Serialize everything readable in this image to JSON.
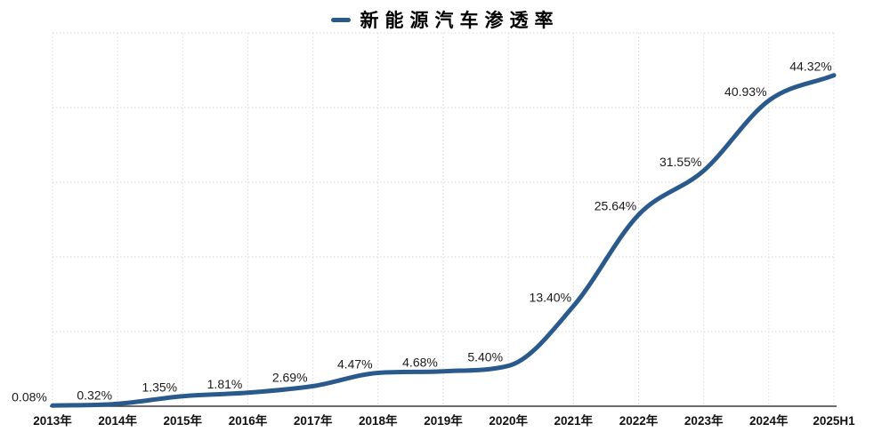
{
  "chart_data": {
    "type": "line",
    "series_name": "新能源汽车渗透率",
    "categories": [
      "2013年",
      "2014年",
      "2015年",
      "2016年",
      "2017年",
      "2018年",
      "2019年",
      "2020年",
      "2021年",
      "2022年",
      "2023年",
      "2024年",
      "2025H1"
    ],
    "values": [
      0.08,
      0.32,
      1.35,
      1.81,
      2.69,
      4.47,
      4.68,
      5.4,
      13.4,
      25.64,
      31.55,
      40.93,
      44.32
    ],
    "point_labels": [
      "0.08%",
      "0.32%",
      "1.35%",
      "1.81%",
      "2.69%",
      "4.47%",
      "4.68%",
      "5.40%",
      "13.40%",
      "25.64%",
      "31.55%",
      "40.93%",
      "44.32%"
    ],
    "xlabel": "",
    "ylabel": "",
    "ylim": [
      0,
      50
    ],
    "y_grid_step": 10,
    "grid": "dotted",
    "legend_position": "top-center",
    "smooth": true,
    "colors": {
      "line": "#2A5A8C",
      "grid": "#d9d9d9",
      "axis": "#3a3a3a",
      "label": "#1a1a1a",
      "tick": "#111111"
    }
  }
}
